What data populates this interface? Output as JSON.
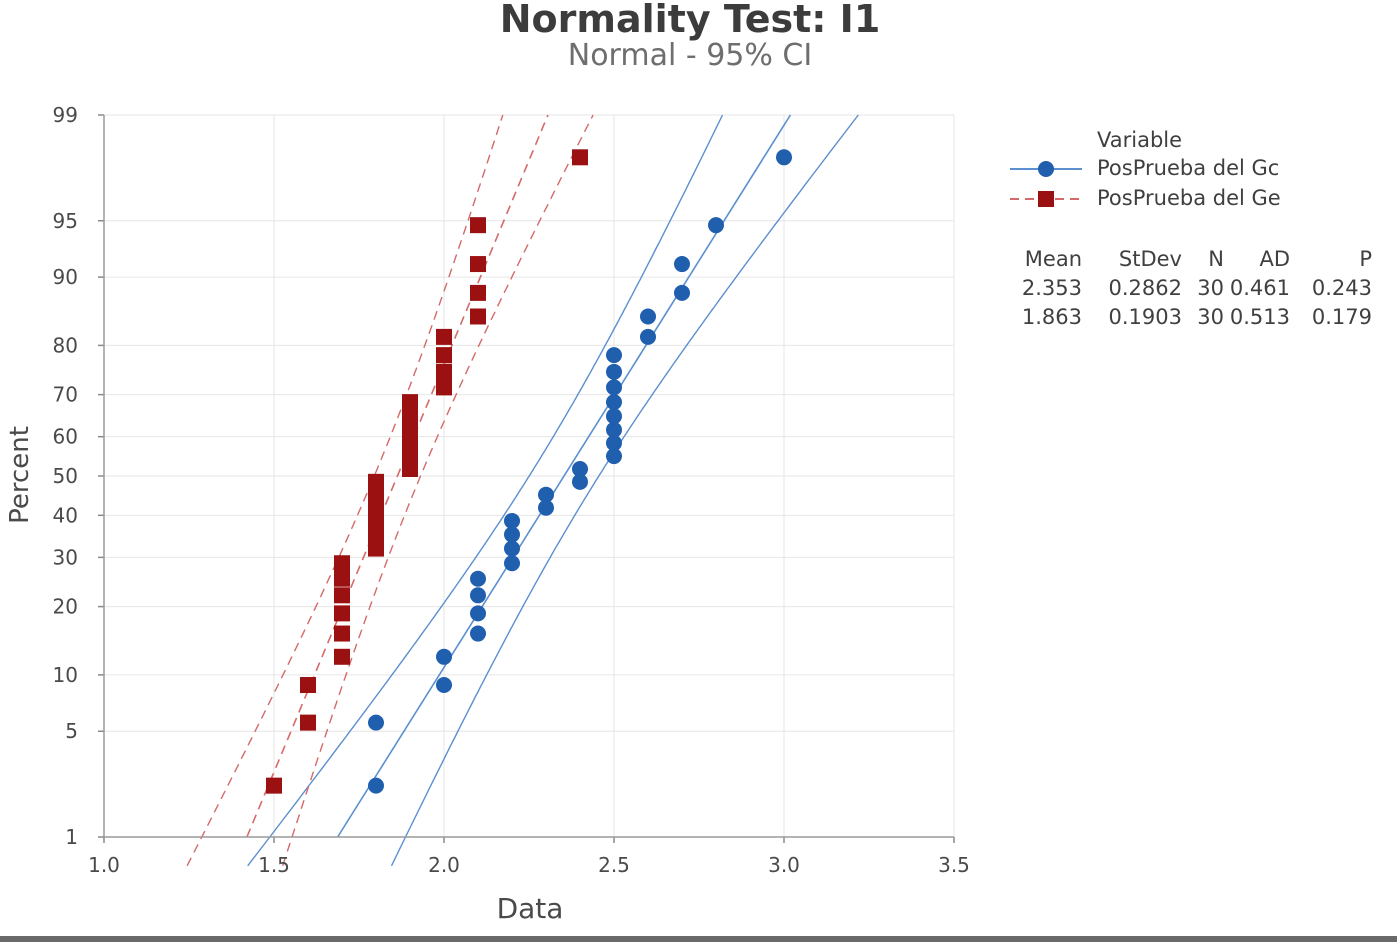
{
  "chart_data": {
    "type": "scatter",
    "title": "Normality Test: I1",
    "subtitle": "Normal - 95% CI",
    "xlabel": "Data",
    "ylabel": "Percent",
    "xlim": [
      1.0,
      3.5
    ],
    "x_ticks": [
      "1.0",
      "1.5",
      "2.0",
      "2.5",
      "3.0",
      "3.5"
    ],
    "y_scale": "normal-probability",
    "y_ticks": [
      "1",
      "5",
      "10",
      "20",
      "30",
      "40",
      "50",
      "60",
      "70",
      "80",
      "90",
      "95",
      "99"
    ],
    "legend_title": "Variable",
    "series": [
      {
        "name": "PosPrueba del Gc",
        "color": "#1f5fae",
        "line_color": "#5b8fcf",
        "marker": "circle",
        "line_style": "solid",
        "mean": 2.353,
        "stdev": 0.2862,
        "n": 30,
        "points": [
          [
            1.8,
            2.3
          ],
          [
            1.8,
            5.6
          ],
          [
            2.0,
            8.9
          ],
          [
            2.0,
            12.2
          ],
          [
            2.1,
            15.5
          ],
          [
            2.1,
            18.8
          ],
          [
            2.1,
            22.1
          ],
          [
            2.1,
            25.4
          ],
          [
            2.2,
            28.7
          ],
          [
            2.2,
            32.0
          ],
          [
            2.2,
            35.3
          ],
          [
            2.2,
            38.6
          ],
          [
            2.3,
            41.9
          ],
          [
            2.3,
            45.2
          ],
          [
            2.4,
            48.5
          ],
          [
            2.4,
            51.8
          ],
          [
            2.5,
            55.1
          ],
          [
            2.5,
            58.4
          ],
          [
            2.5,
            61.7
          ],
          [
            2.5,
            65.0
          ],
          [
            2.5,
            68.3
          ],
          [
            2.5,
            71.6
          ],
          [
            2.5,
            74.9
          ],
          [
            2.5,
            78.2
          ],
          [
            2.6,
            81.5
          ],
          [
            2.6,
            84.8
          ],
          [
            2.7,
            88.1
          ],
          [
            2.7,
            91.4
          ],
          [
            2.8,
            94.7
          ],
          [
            3.0,
            98.0
          ]
        ]
      },
      {
        "name": "PosPrueba del Ge",
        "color": "#9b1111",
        "line_color": "#d46a6a",
        "marker": "square",
        "line_style": "dashed",
        "mean": 1.863,
        "stdev": 0.1903,
        "n": 30,
        "points": [
          [
            1.5,
            2.3
          ],
          [
            1.6,
            5.6
          ],
          [
            1.6,
            8.9
          ],
          [
            1.7,
            12.2
          ],
          [
            1.7,
            15.5
          ],
          [
            1.7,
            18.8
          ],
          [
            1.7,
            22.1
          ],
          [
            1.7,
            25.4
          ],
          [
            1.7,
            28.7
          ],
          [
            1.8,
            32.0
          ],
          [
            1.8,
            35.3
          ],
          [
            1.8,
            38.6
          ],
          [
            1.8,
            41.9
          ],
          [
            1.8,
            45.2
          ],
          [
            1.8,
            48.5
          ],
          [
            1.9,
            51.8
          ],
          [
            1.9,
            55.1
          ],
          [
            1.9,
            58.4
          ],
          [
            1.9,
            61.7
          ],
          [
            1.9,
            65.0
          ],
          [
            1.9,
            68.3
          ],
          [
            2.0,
            71.6
          ],
          [
            2.0,
            74.9
          ],
          [
            2.0,
            78.2
          ],
          [
            2.0,
            81.5
          ],
          [
            2.1,
            84.8
          ],
          [
            2.1,
            88.1
          ],
          [
            2.1,
            91.4
          ],
          [
            2.1,
            94.7
          ],
          [
            2.4,
            98.0
          ]
        ]
      }
    ],
    "stats_table": {
      "headers": [
        "Mean",
        "StDev",
        "N",
        "AD",
        "P"
      ],
      "rows": [
        [
          "2.353",
          "0.2862",
          "30",
          "0.461",
          "0.243"
        ],
        [
          "1.863",
          "0.1903",
          "30",
          "0.513",
          "0.179"
        ]
      ]
    }
  }
}
